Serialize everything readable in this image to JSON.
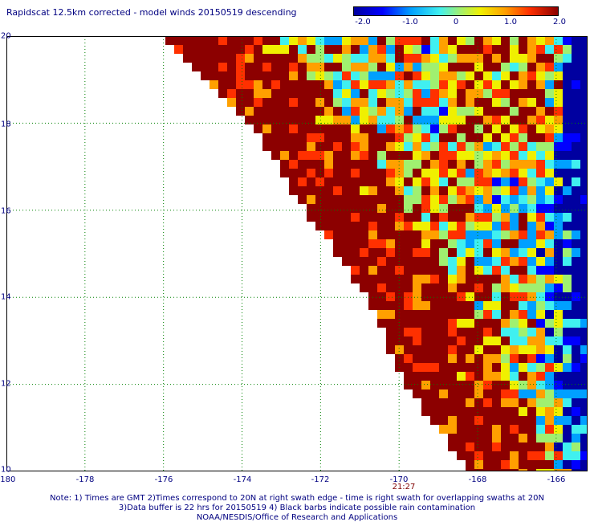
{
  "title": "Rapidscat 12.5km corrected - model winds 20150519 descending",
  "colorbar": {
    "tick_labels": [
      "-2.0",
      "-1.0",
      "0",
      "1.0",
      "2.0"
    ],
    "tick_values": [
      -2.0,
      -1.0,
      0,
      1.0,
      2.0
    ],
    "colors": [
      "#0000a0",
      "#0000ff",
      "#00a0ff",
      "#40f0f0",
      "#a0f070",
      "#f0f000",
      "#ffa000",
      "#ff3000",
      "#8c0000"
    ]
  },
  "map": {
    "lon_range": [
      -180,
      -165.2
    ],
    "lat_range": [
      10,
      20
    ],
    "x_ticks": [
      "-180",
      "-178",
      "-176",
      "-174",
      "-172",
      "-170",
      "-168",
      "-166"
    ],
    "x_tick_values": [
      -180,
      -178,
      -176,
      -174,
      -172,
      -170,
      -168,
      -166
    ],
    "y_ticks": [
      "10",
      "12",
      "14",
      "16",
      "18",
      "20"
    ],
    "y_tick_values": [
      10,
      12,
      14,
      16,
      18,
      20
    ],
    "grid": "dotted",
    "swath_edge_lons": [
      [
        20,
        -176.0
      ],
      [
        18,
        -173.8
      ],
      [
        16,
        -172.4
      ],
      [
        14,
        -170.8
      ],
      [
        12,
        -169.9
      ],
      [
        10,
        -168.2
      ]
    ],
    "time_label": "21:27",
    "time_label_lon": -169.7,
    "grid_color": "#008000",
    "dominant_color": "#8c0000"
  },
  "notes": {
    "line1": "Note: 1) Times are GMT 2)Times correspond to 20N at right swath edge - time is right swath for overlapping swaths at 20N",
    "line2": "3)Data buffer is 22 hrs for 20150519 4) Black barbs indicate possible rain contamination",
    "line3": "NOAA/NESDIS/Office of Research and Applications"
  }
}
